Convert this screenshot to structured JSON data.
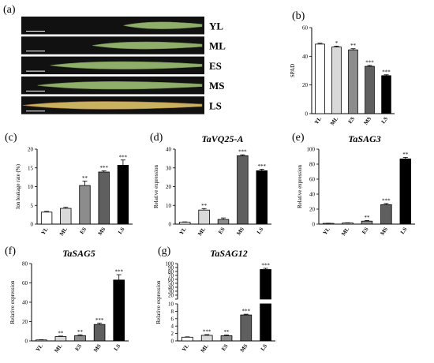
{
  "panels": {
    "a": {
      "letter": "(a)",
      "leaves": [
        {
          "label": "YL",
          "fill": 0.45
        },
        {
          "label": "ML",
          "fill": 0.62
        },
        {
          "label": "ES",
          "fill": 0.85
        },
        {
          "label": "MS",
          "fill": 0.92
        },
        {
          "label": "LS",
          "fill": 1.0
        }
      ]
    },
    "b": {
      "letter": "(b)"
    },
    "c": {
      "letter": "(c)"
    },
    "d": {
      "letter": "(d)"
    },
    "e": {
      "letter": "(e)"
    },
    "f": {
      "letter": "(f)"
    },
    "g": {
      "letter": "(g)"
    }
  },
  "colors": {
    "YL": "#ffffff",
    "ML": "#d9d9d9",
    "ES": "#8c8c8c",
    "MS": "#5f5f5f",
    "LS": "#000000",
    "leaf_green": "#8fae6a",
    "leaf_yellow": "#c9b25f",
    "photo_bg": "#111111"
  },
  "chart_data": [
    {
      "id": "b",
      "type": "bar",
      "title": "",
      "xlabel": "",
      "ylabel": "SPAD",
      "categories": [
        "YL",
        "ML",
        "ES",
        "MS",
        "LS"
      ],
      "values": [
        48.5,
        46.5,
        44.5,
        33,
        26.5
      ],
      "errors": [
        0.6,
        0.6,
        0.8,
        0.6,
        0.6
      ],
      "significance": [
        "",
        "*",
        "**",
        "***",
        "***"
      ],
      "ylim": [
        0,
        60
      ],
      "yticks": [
        0,
        20,
        40,
        60
      ]
    },
    {
      "id": "c",
      "type": "bar",
      "title": "",
      "xlabel": "",
      "ylabel": "Ion leakage rate (%)",
      "categories": [
        "YL",
        "ML",
        "ES",
        "MS",
        "LS"
      ],
      "values": [
        3.2,
        4.2,
        10.3,
        13.9,
        15.7
      ],
      "errors": [
        0.2,
        0.3,
        1.2,
        0.3,
        1.4
      ],
      "significance": [
        "",
        "",
        "**",
        "***",
        "***"
      ],
      "ylim": [
        0,
        20
      ],
      "yticks": [
        0,
        5,
        10,
        15,
        20
      ]
    },
    {
      "id": "d",
      "type": "bar",
      "title": "TaVQ25-A",
      "xlabel": "",
      "ylabel": "Relative expression",
      "categories": [
        "YL",
        "ML",
        "ES",
        "MS",
        "LS"
      ],
      "values": [
        1,
        7.5,
        2.5,
        36.5,
        28.5
      ],
      "errors": [
        0.2,
        0.8,
        0.8,
        0.5,
        0.8
      ],
      "significance": [
        "",
        "**",
        "",
        "***",
        "***"
      ],
      "ylim": [
        0,
        40
      ],
      "yticks": [
        0,
        10,
        20,
        30,
        40
      ]
    },
    {
      "id": "e",
      "type": "bar",
      "title": "TaSAG3",
      "xlabel": "",
      "ylabel": "Relative expression",
      "categories": [
        "YL",
        "ML",
        "ES",
        "MS",
        "LS"
      ],
      "values": [
        1,
        1.5,
        4,
        26,
        87
      ],
      "errors": [
        0.2,
        0.3,
        0.8,
        1.5,
        2
      ],
      "significance": [
        "",
        "",
        "**",
        "***",
        "**"
      ],
      "ylim": [
        0,
        100
      ],
      "yticks": [
        0,
        20,
        40,
        60,
        80,
        100
      ]
    },
    {
      "id": "f",
      "type": "bar",
      "title": "TaSAG5",
      "xlabel": "",
      "ylabel": "Relative expression",
      "categories": [
        "YL",
        "ML",
        "ES",
        "MS",
        "LS"
      ],
      "values": [
        1,
        4.5,
        5.5,
        17,
        63
      ],
      "errors": [
        0.2,
        0.5,
        0.8,
        1.5,
        5.5
      ],
      "significance": [
        "",
        "**",
        "**",
        "***",
        "***"
      ],
      "ylim": [
        0,
        80
      ],
      "yticks": [
        0,
        20,
        40,
        60,
        80
      ]
    },
    {
      "id": "g",
      "type": "bar",
      "title": "TaSAG12",
      "xlabel": "",
      "ylabel": "Relative expression",
      "categories": [
        "YL",
        "ML",
        "ES",
        "MS",
        "LS"
      ],
      "values": [
        1,
        1.5,
        1.4,
        7,
        85
      ],
      "errors": [
        0.1,
        0.2,
        0.2,
        0.2,
        3
      ],
      "significance": [
        "",
        "***",
        "**",
        "***",
        "***"
      ],
      "axis_break": {
        "lower": [
          0,
          10
        ],
        "upper": [
          10,
          100
        ]
      },
      "yticks_lower": [
        0,
        2,
        4,
        6,
        8,
        10
      ],
      "yticks_upper": [
        10,
        20,
        30,
        40,
        50,
        60,
        70,
        80,
        90,
        100
      ]
    }
  ]
}
